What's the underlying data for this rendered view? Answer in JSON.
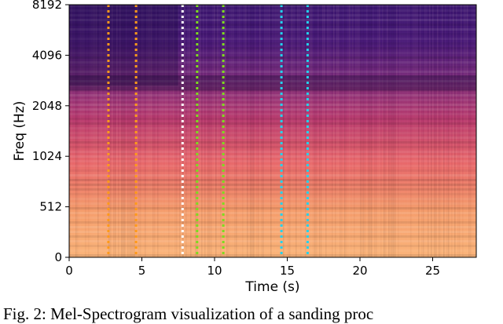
{
  "chart_data": {
    "type": "heatmap",
    "title": "",
    "xlabel": "Time (s)",
    "ylabel": "Freq (Hz)",
    "xlim": [
      0,
      28
    ],
    "x_ticks": [
      0,
      5,
      10,
      15,
      20,
      25
    ],
    "y_ticks": [
      "0",
      "512",
      "1024",
      "2048",
      "4096",
      "8192"
    ],
    "y_scale": "mel",
    "colormap": "magma",
    "energy_profile": {
      "description": "relative energy by mel band (0 = low freq, 1 = high freq), 1.0 = bright",
      "bands": [
        0.0,
        0.25,
        0.45,
        0.55,
        0.7,
        0.85,
        1.0
      ],
      "levels": [
        0.9,
        0.78,
        0.66,
        0.55,
        0.5,
        0.35,
        0.25
      ]
    },
    "markers": [
      {
        "time": 2.7,
        "color": "#ff9a1a"
      },
      {
        "time": 4.6,
        "color": "#ff9a1a"
      },
      {
        "time": 7.8,
        "color": "#ffffff"
      },
      {
        "time": 8.8,
        "color": "#7ddc1f"
      },
      {
        "time": 10.6,
        "color": "#7ddc1f"
      },
      {
        "time": 14.6,
        "color": "#22d3ee"
      },
      {
        "time": 16.4,
        "color": "#22d3ee"
      }
    ]
  },
  "caption": "Fig. 2: Mel-Spectrogram visualization of a sanding proc"
}
